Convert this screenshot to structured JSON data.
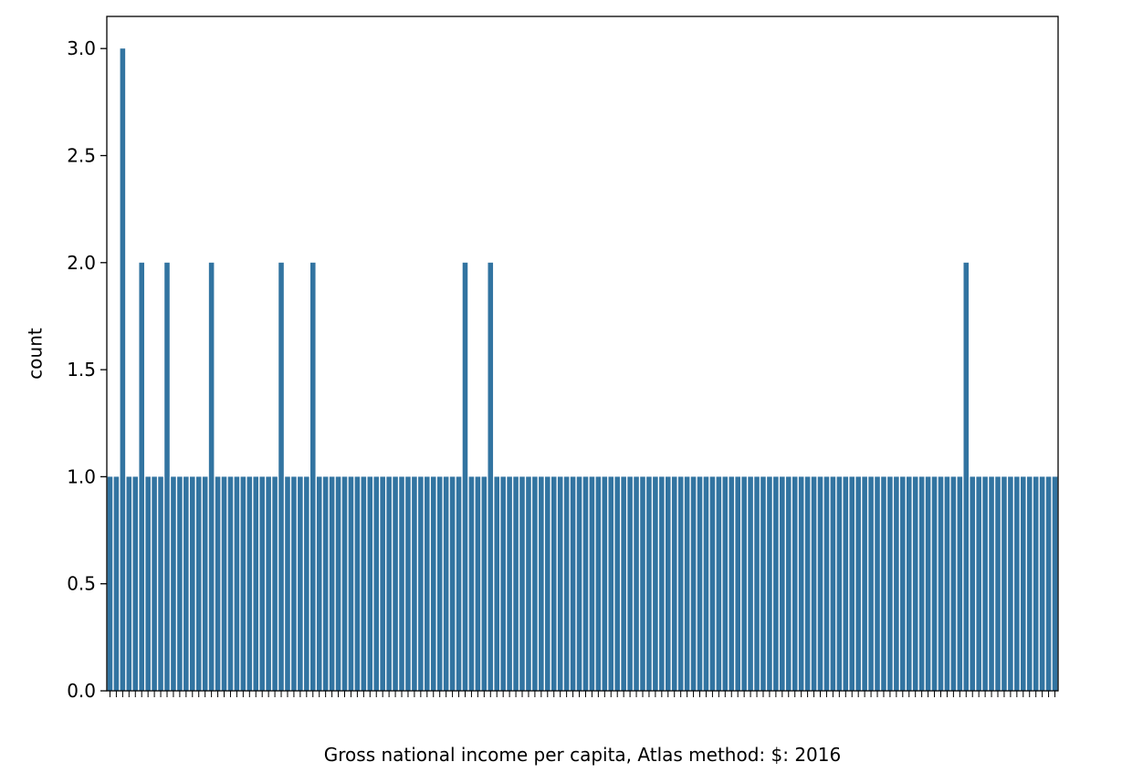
{
  "chart_data": {
    "type": "bar",
    "xlabel": "Gross national income per capita, Atlas method: $: 2016",
    "ylabel": "count",
    "title": "",
    "ylim": [
      0,
      3.15
    ],
    "yticks": [
      0.0,
      0.5,
      1.0,
      1.5,
      2.0,
      2.5,
      3.0
    ],
    "ytick_labels": [
      "0.0",
      "0.5",
      "1.0",
      "1.5",
      "2.0",
      "2.5",
      "3.0"
    ],
    "grid": false,
    "legend": "none",
    "bar_color": "#3274a1",
    "n_categories": 150,
    "values": [
      1,
      1,
      3,
      1,
      1,
      2,
      1,
      1,
      1,
      2,
      1,
      1,
      1,
      1,
      1,
      1,
      2,
      1,
      1,
      1,
      1,
      1,
      1,
      1,
      1,
      1,
      1,
      2,
      1,
      1,
      1,
      1,
      2,
      1,
      1,
      1,
      1,
      1,
      1,
      1,
      1,
      1,
      1,
      1,
      1,
      1,
      1,
      1,
      1,
      1,
      1,
      1,
      1,
      1,
      1,
      1,
      2,
      1,
      1,
      1,
      2,
      1,
      1,
      1,
      1,
      1,
      1,
      1,
      1,
      1,
      1,
      1,
      1,
      1,
      1,
      1,
      1,
      1,
      1,
      1,
      1,
      1,
      1,
      1,
      1,
      1,
      1,
      1,
      1,
      1,
      1,
      1,
      1,
      1,
      1,
      1,
      1,
      1,
      1,
      1,
      1,
      1,
      1,
      1,
      1,
      1,
      1,
      1,
      1,
      1,
      1,
      1,
      1,
      1,
      1,
      1,
      1,
      1,
      1,
      1,
      1,
      1,
      1,
      1,
      1,
      1,
      1,
      1,
      1,
      1,
      1,
      1,
      1,
      1,
      1,
      2,
      1,
      1,
      1,
      1,
      1,
      1,
      1,
      1,
      1,
      1,
      1,
      1,
      1,
      1
    ]
  }
}
